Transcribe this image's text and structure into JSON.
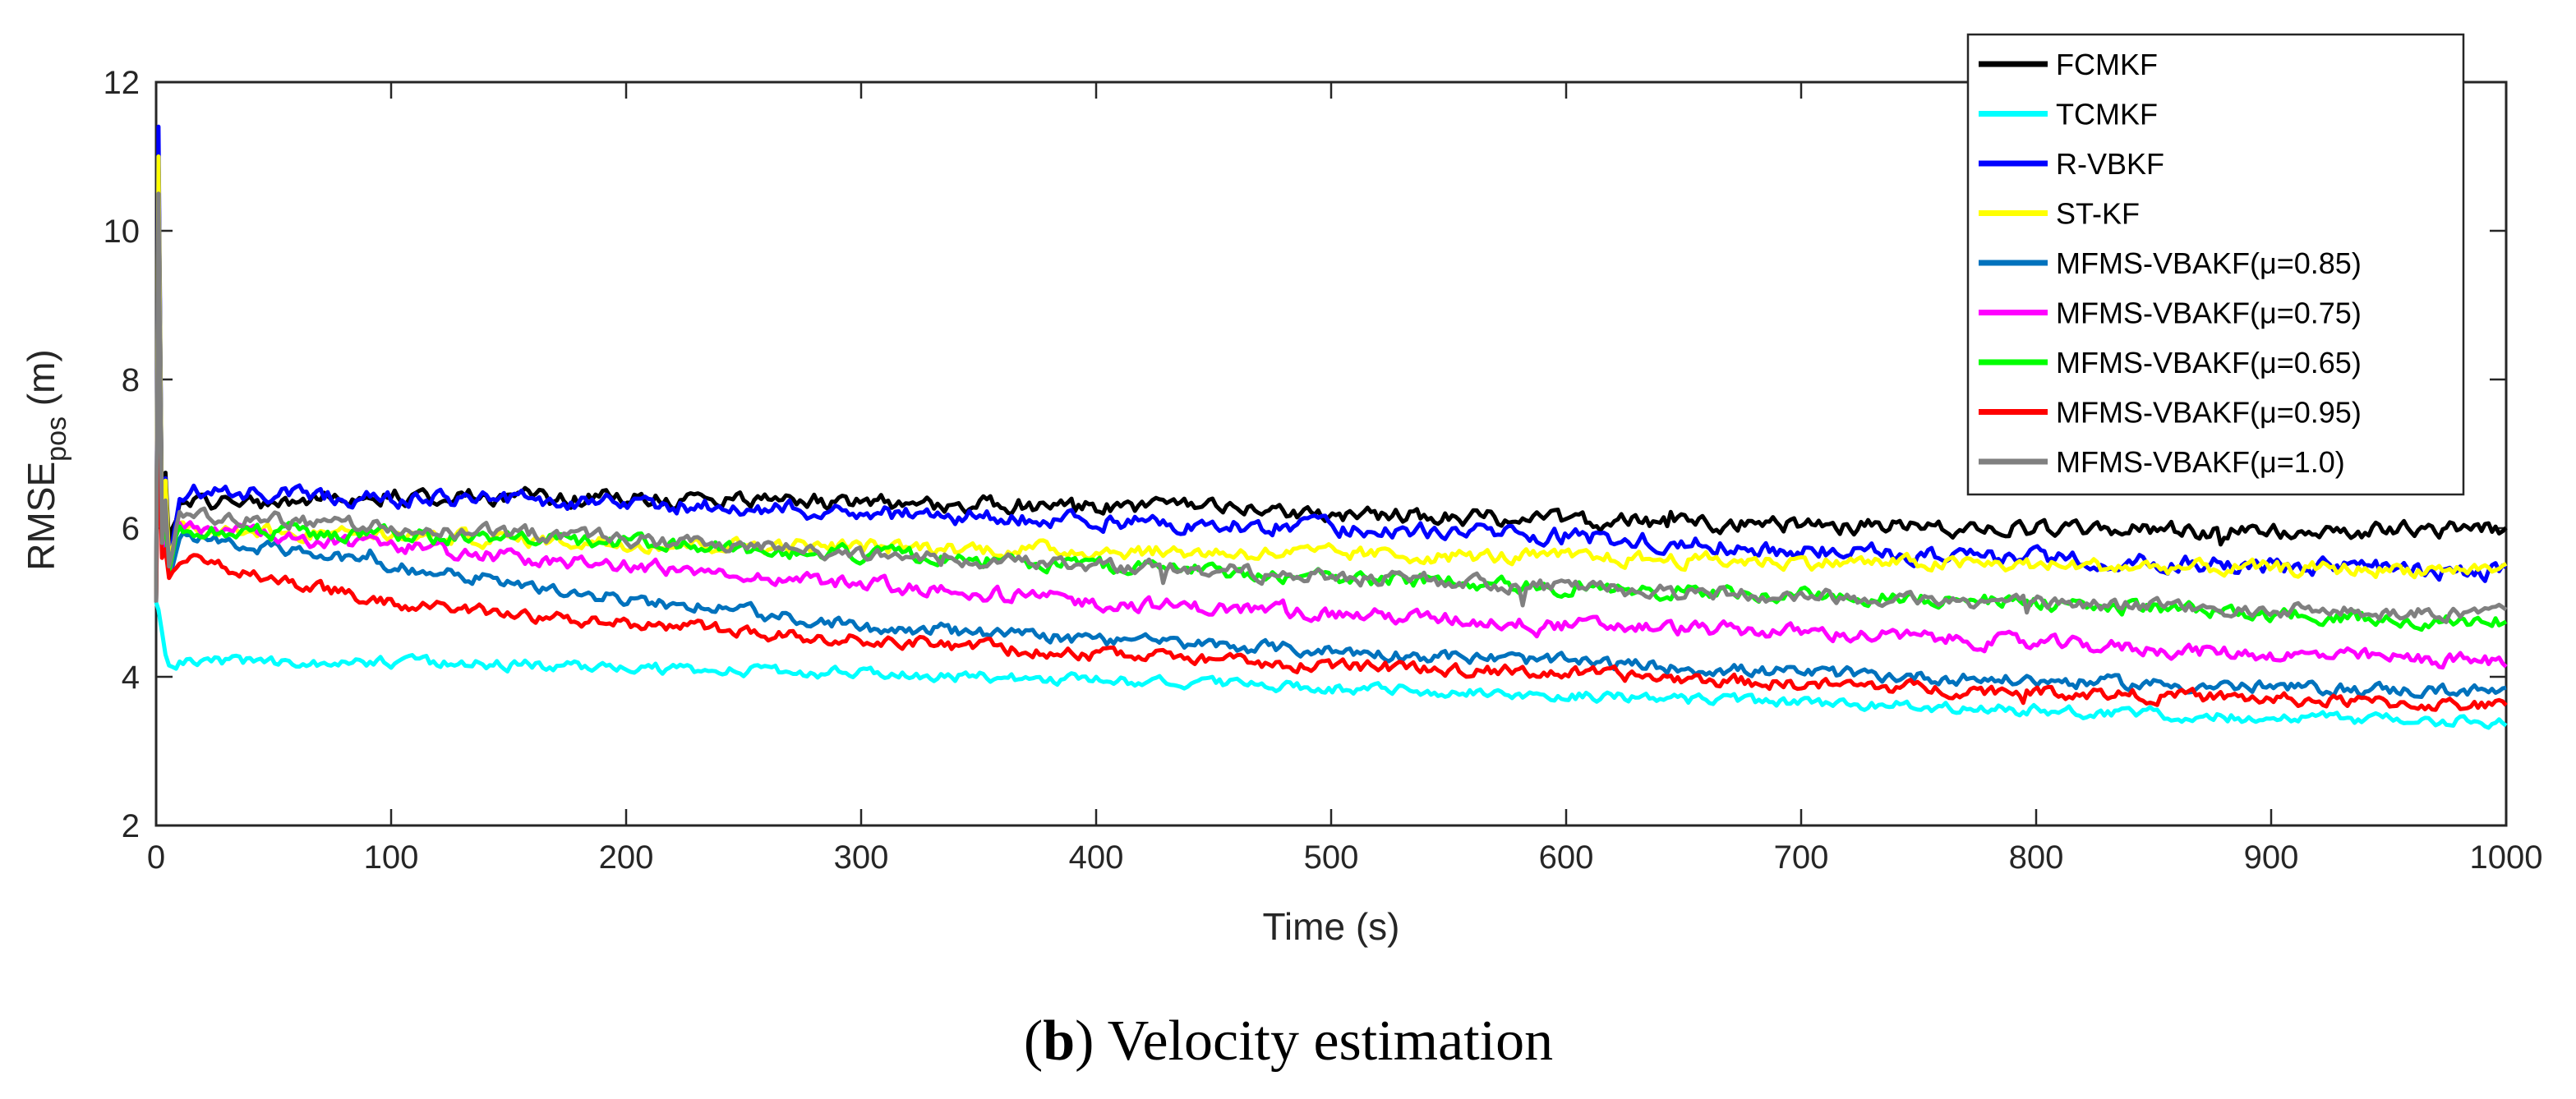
{
  "chart_data": {
    "type": "line",
    "title": "",
    "xlabel": "Time (s)",
    "ylabel_main": "RMSE",
    "ylabel_sub": "pos",
    "ylabel_unit": " (m)",
    "xlim": [
      0,
      1000
    ],
    "ylim": [
      2,
      12
    ],
    "xticks": [
      0,
      100,
      200,
      300,
      400,
      500,
      600,
      700,
      800,
      900,
      1000
    ],
    "yticks": [
      2,
      4,
      6,
      8,
      10,
      12
    ],
    "xtick_labels": [
      "0",
      "100",
      "200",
      "300",
      "400",
      "500",
      "600",
      "700",
      "800",
      "900",
      "1000"
    ],
    "ytick_labels": [
      "2",
      "4",
      "6",
      "8",
      "10",
      "12"
    ],
    "grid": false,
    "legend_position": "top-right",
    "caption_bold": "b",
    "caption_rest": "Velocity estimation",
    "series": [
      {
        "name": "FCMKF",
        "color": "#000000",
        "peak": 11.0,
        "x": [
          0,
          5,
          10,
          50,
          100,
          200,
          300,
          400,
          500,
          600,
          700,
          800,
          900,
          1000
        ],
        "values": [
          11.0,
          5.6,
          6.35,
          6.35,
          6.45,
          6.4,
          6.35,
          6.3,
          6.2,
          6.1,
          6.05,
          6.0,
          5.95,
          6.0
        ],
        "noise": 0.09
      },
      {
        "name": "TCMKF",
        "color": "#00ffff",
        "peak": 4.9,
        "x": [
          0,
          5,
          10,
          100,
          200,
          300,
          400,
          500,
          600,
          700,
          800,
          900,
          1000
        ],
        "values": [
          4.9,
          4.2,
          4.2,
          4.2,
          4.12,
          4.05,
          3.95,
          3.85,
          3.75,
          3.65,
          3.55,
          3.45,
          3.4
        ],
        "noise": 0.06
      },
      {
        "name": "R-VBKF",
        "color": "#0000ff",
        "peak": 11.4,
        "x": [
          0,
          5,
          10,
          50,
          100,
          200,
          300,
          400,
          500,
          600,
          700,
          800,
          900,
          1000
        ],
        "values": [
          11.4,
          5.5,
          6.5,
          6.45,
          6.4,
          6.35,
          6.2,
          6.1,
          6.0,
          5.9,
          5.7,
          5.6,
          5.5,
          5.4
        ],
        "noise": 0.09
      },
      {
        "name": "ST-KF",
        "color": "#ffff00",
        "peak": 11.0,
        "x": [
          0,
          5,
          10,
          100,
          200,
          300,
          400,
          500,
          600,
          700,
          800,
          900,
          1000
        ],
        "values": [
          11.0,
          5.5,
          6.0,
          5.9,
          5.8,
          5.75,
          5.7,
          5.65,
          5.6,
          5.55,
          5.5,
          5.45,
          5.45
        ],
        "noise": 0.08
      },
      {
        "name": "MFMS-VBAKF(μ=0.85)",
        "color": "#0072bd",
        "peak": 8.5,
        "x": [
          0,
          5,
          10,
          100,
          200,
          300,
          400,
          500,
          600,
          700,
          800,
          900,
          1000
        ],
        "values": [
          8.5,
          5.3,
          5.9,
          5.5,
          5.05,
          4.7,
          4.5,
          4.35,
          4.2,
          4.05,
          3.95,
          3.85,
          3.8
        ],
        "noise": 0.07
      },
      {
        "name": "MFMS-VBAKF(μ=0.75)",
        "color": "#ff00ff",
        "peak": 9.5,
        "x": [
          0,
          5,
          10,
          100,
          200,
          300,
          400,
          500,
          600,
          700,
          800,
          900,
          1000
        ],
        "values": [
          9.5,
          5.3,
          6.0,
          5.75,
          5.5,
          5.25,
          5.0,
          4.85,
          4.7,
          4.6,
          4.45,
          4.3,
          4.2
        ],
        "noise": 0.08
      },
      {
        "name": "MFMS-VBAKF(μ=0.65)",
        "color": "#00ff00",
        "peak": 9.0,
        "x": [
          0,
          5,
          10,
          100,
          200,
          300,
          400,
          500,
          600,
          700,
          800,
          900,
          1000
        ],
        "values": [
          9.0,
          5.4,
          6.0,
          5.9,
          5.8,
          5.65,
          5.5,
          5.35,
          5.2,
          5.1,
          5.0,
          4.85,
          4.75
        ],
        "noise": 0.08
      },
      {
        "name": "MFMS-VBAKF(μ=0.95)",
        "color": "#ff0000",
        "peak": 7.5,
        "x": [
          0,
          5,
          10,
          100,
          200,
          300,
          400,
          500,
          600,
          700,
          800,
          900,
          1000
        ],
        "values": [
          7.5,
          5.2,
          5.6,
          5.0,
          4.7,
          4.5,
          4.3,
          4.15,
          4.05,
          3.9,
          3.8,
          3.7,
          3.6
        ],
        "noise": 0.07
      },
      {
        "name": "MFMS-VBAKF(μ=1.0)",
        "color": "#808080",
        "peak": 10.5,
        "x": [
          0,
          5,
          10,
          100,
          200,
          300,
          400,
          500,
          600,
          700,
          800,
          900,
          1000
        ],
        "values": [
          10.5,
          5.4,
          6.2,
          6.0,
          5.85,
          5.65,
          5.5,
          5.35,
          5.2,
          5.1,
          5.0,
          4.9,
          4.85
        ],
        "noise": 0.08
      }
    ]
  }
}
